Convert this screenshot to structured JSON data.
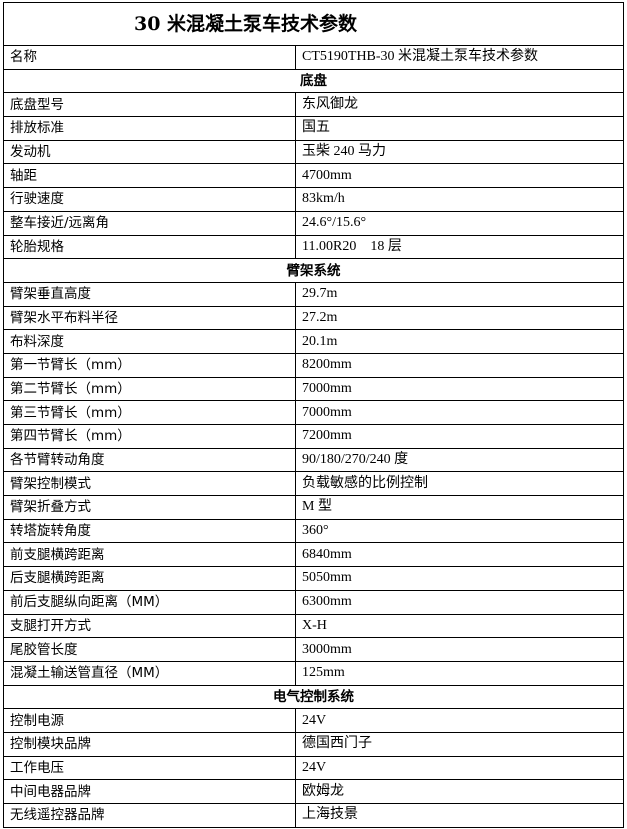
{
  "title": "30 米混凝土泵车技术参数",
  "rows": [
    {
      "k": "名称",
      "v": "CT5190THB-30 米混凝土泵车技术参数"
    },
    {
      "section": "底盘"
    },
    {
      "k": "底盘型号",
      "v": "东风御龙"
    },
    {
      "k": "排放标准",
      "v": "国五"
    },
    {
      "k": "发动机",
      "v": "玉柴 240 马力"
    },
    {
      "k": "轴距",
      "v": "4700mm"
    },
    {
      "k": "行驶速度",
      "v": "83km/h"
    },
    {
      "k": "整车接近/远离角",
      "v": "24.6°/15.6°"
    },
    {
      "k": "轮胎规格",
      "v": "11.00R20　18 层"
    },
    {
      "section": "臂架系统"
    },
    {
      "k": "臂架垂直高度",
      "v": "29.7m"
    },
    {
      "k": "臂架水平布料半径",
      "v": "27.2m"
    },
    {
      "k": "布料深度",
      "v": "20.1m"
    },
    {
      "k": "第一节臂长（mm）",
      "v": "8200mm"
    },
    {
      "k": "第二节臂长（mm）",
      "v": "7000mm"
    },
    {
      "k": "第三节臂长（mm）",
      "v": "7000mm"
    },
    {
      "k": "第四节臂长（mm）",
      "v": "7200mm"
    },
    {
      "k": "各节臂转动角度",
      "v": "90/180/270/240 度"
    },
    {
      "k": "臂架控制模式",
      "v": "负载敏感的比例控制"
    },
    {
      "k": "臂架折叠方式",
      "v": "M 型"
    },
    {
      "k": "转塔旋转角度",
      "v": "360°"
    },
    {
      "k": "前支腿横跨距离",
      "v": "6840mm"
    },
    {
      "k": "后支腿横跨距离",
      "v": "5050mm"
    },
    {
      "k": "前后支腿纵向距离（MM）",
      "v": "6300mm"
    },
    {
      "k": "支腿打开方式",
      "v": "X-H"
    },
    {
      "k": "尾胶管长度",
      "v": "3000mm"
    },
    {
      "k": "混凝土输送管直径（MM）",
      "v": "125mm"
    },
    {
      "section": "电气控制系统"
    },
    {
      "k": "控制电源",
      "v": "24V"
    },
    {
      "k": "控制模块品牌",
      "v": "德国西门子"
    },
    {
      "k": "工作电压",
      "v": "24V"
    },
    {
      "k": "中间电器品牌",
      "v": "欧姆龙"
    },
    {
      "k": "无线遥控器品牌",
      "v": "上海技景"
    }
  ]
}
